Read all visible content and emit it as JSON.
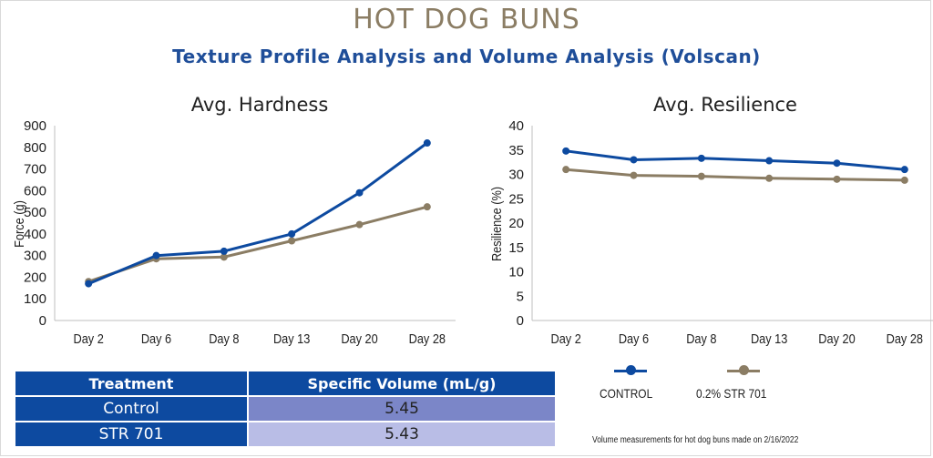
{
  "header": {
    "title": "HOT DOG BUNS",
    "subtitle": "Texture Profile Analysis and Volume Analysis (Volscan)"
  },
  "colors": {
    "control": "#0d4aa0",
    "str701": "#8b7d64",
    "title": "#8b7d64",
    "subtitle": "#1f4e99",
    "table_header": "#0d4aa0",
    "control_volume_cell": "#7b86c8",
    "str701_volume_cell": "#b9bde6"
  },
  "chart_data": [
    {
      "type": "line",
      "title": "Avg. Hardness",
      "xlabel": "",
      "ylabel": "Force (g)",
      "ylim": [
        0,
        900
      ],
      "yticks": [
        0,
        100,
        200,
        300,
        400,
        500,
        600,
        700,
        800,
        900
      ],
      "categories": [
        "Day 2",
        "Day 6",
        "Day 8",
        "Day 13",
        "Day 20",
        "Day 28"
      ],
      "grid": false,
      "legend": "bottom",
      "series": [
        {
          "name": "CONTROL",
          "values": [
            170,
            300,
            320,
            400,
            590,
            820
          ]
        },
        {
          "name": "0.2% STR 701",
          "values": [
            180,
            285,
            293,
            368,
            443,
            525
          ]
        }
      ]
    },
    {
      "type": "line",
      "title": "Avg. Resilience",
      "xlabel": "",
      "ylabel": "Resilience (%)",
      "ylim": [
        0,
        40
      ],
      "yticks": [
        0,
        5,
        10,
        15,
        20,
        25,
        30,
        35,
        40
      ],
      "categories": [
        "Day 2",
        "Day 6",
        "Day 8",
        "Day 13",
        "Day 20",
        "Day 28"
      ],
      "grid": false,
      "legend": "bottom",
      "series": [
        {
          "name": "CONTROL",
          "values": [
            34.8,
            33.0,
            33.3,
            32.8,
            32.3,
            31.0
          ]
        },
        {
          "name": "0.2% STR 701",
          "values": [
            31.0,
            29.8,
            29.6,
            29.2,
            29.0,
            28.8
          ]
        }
      ]
    }
  ],
  "volume_table": {
    "headers": [
      "Treatment",
      "Specific Volume (mL/g)"
    ],
    "rows": [
      {
        "treatment": "Control",
        "volume": "5.45"
      },
      {
        "treatment": "STR 701",
        "volume": "5.43"
      }
    ]
  },
  "legend": {
    "control_label": "CONTROL",
    "str701_label": "0.2% STR 701"
  },
  "footnote": "Volume measurements for hot dog buns made on 2/16/2022"
}
